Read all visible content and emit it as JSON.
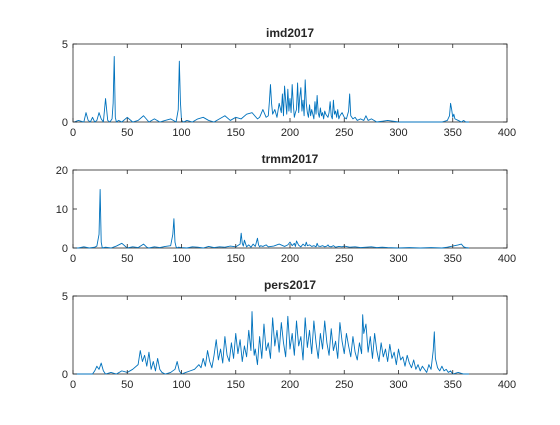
{
  "chart_data": [
    {
      "type": "line",
      "title": "imd2017",
      "xlabel": "",
      "ylabel": "",
      "xlim": [
        0,
        400
      ],
      "ylim": [
        0,
        5
      ],
      "xticks": [
        0,
        50,
        100,
        150,
        200,
        250,
        300,
        350,
        400
      ],
      "yticks": [
        0,
        5
      ],
      "grid": false,
      "line_color": "#0072BD",
      "series": [
        {
          "x": [
            1,
            5,
            10,
            12,
            14,
            16,
            18,
            20,
            22,
            24,
            26,
            28,
            30,
            32,
            34,
            36,
            37,
            38,
            39,
            40,
            42,
            45,
            50,
            55,
            60,
            65,
            70,
            75,
            80,
            85,
            90,
            95,
            97,
            98,
            99,
            100,
            102,
            105,
            110,
            115,
            120,
            125,
            130,
            135,
            140,
            145,
            150,
            155,
            160,
            165,
            170,
            172,
            175,
            178,
            180,
            181,
            182,
            183,
            184,
            186,
            188,
            190,
            192,
            193,
            194,
            195,
            196,
            197,
            198,
            199,
            200,
            201,
            202,
            203,
            204,
            205,
            206,
            207,
            208,
            209,
            210,
            211,
            212,
            213,
            214,
            215,
            216,
            217,
            218,
            219,
            220,
            221,
            222,
            223,
            224,
            225,
            226,
            227,
            228,
            229,
            230,
            231,
            232,
            233,
            234,
            235,
            236,
            237,
            238,
            239,
            240,
            241,
            242,
            243,
            244,
            245,
            246,
            248,
            250,
            252,
            254,
            255,
            256,
            258,
            260,
            262,
            265,
            268,
            270,
            272,
            275,
            280,
            290,
            300,
            320,
            340,
            345,
            347,
            348,
            349,
            350,
            351,
            352,
            355,
            358,
            360,
            362,
            365
          ],
          "y": [
            0,
            0.1,
            0,
            0.6,
            0.1,
            0,
            0.3,
            0,
            0.1,
            0.6,
            0.2,
            0,
            1.5,
            0.1,
            0,
            0.2,
            1.2,
            4.2,
            0.3,
            0,
            0.1,
            0,
            0.3,
            0,
            0.1,
            0.4,
            0,
            0.2,
            0,
            0.1,
            0.2,
            0,
            0.8,
            3.9,
            1.3,
            0.1,
            0,
            0.1,
            0,
            0.2,
            0.3,
            0.1,
            0,
            0.2,
            0.4,
            0.1,
            0.3,
            0.2,
            0.5,
            0.6,
            0.2,
            0.3,
            0.8,
            0.3,
            0.4,
            1.3,
            2.4,
            1.2,
            0.5,
            0.8,
            0.3,
            1.2,
            0.6,
            1.8,
            0.4,
            2.3,
            1.4,
            0.5,
            2.1,
            0.7,
            1.5,
            0.6,
            2.4,
            1.2,
            0.3,
            0.6,
            0.8,
            2.5,
            0.6,
            1.6,
            2.2,
            0.7,
            1.4,
            0.4,
            2.7,
            1.2,
            0.6,
            0.3,
            1.1,
            0.4,
            0.8,
            0.5,
            0.2,
            1.3,
            0.5,
            1.7,
            0.6,
            0.3,
            0.9,
            0.4,
            0.6,
            0.2,
            0.7,
            0.5,
            0.4,
            0.3,
            0.6,
            1.3,
            0.4,
            0.2,
            1.4,
            0.5,
            0.7,
            0.3,
            0.8,
            0.2,
            0.4,
            0.6,
            0.3,
            0.2,
            0.7,
            1.8,
            0.4,
            0.2,
            0.3,
            0.1,
            0.2,
            0.1,
            0.4,
            0.1,
            0.2,
            0,
            0.1,
            0,
            0,
            0,
            0.1,
            0.4,
            1.2,
            0.8,
            0.3,
            0.5,
            0.2,
            0.1,
            0,
            0.1,
            0,
            0
          ]
        }
      ]
    },
    {
      "type": "line",
      "title": "trmm2017",
      "xlabel": "",
      "ylabel": "",
      "xlim": [
        0,
        400
      ],
      "ylim": [
        0,
        20
      ],
      "xticks": [
        0,
        50,
        100,
        150,
        200,
        250,
        300,
        350,
        400
      ],
      "yticks": [
        0,
        10,
        20
      ],
      "grid": false,
      "line_color": "#0072BD",
      "series": [
        {
          "x": [
            1,
            5,
            10,
            15,
            20,
            22,
            24,
            25,
            26,
            27,
            30,
            35,
            40,
            45,
            50,
            55,
            60,
            65,
            68,
            70,
            75,
            80,
            85,
            90,
            92,
            93,
            94,
            95,
            96,
            97,
            100,
            105,
            110,
            115,
            120,
            125,
            130,
            135,
            140,
            145,
            150,
            154,
            155,
            156,
            157,
            158,
            160,
            162,
            164,
            166,
            168,
            170,
            171,
            172,
            173,
            175,
            178,
            180,
            185,
            190,
            195,
            198,
            200,
            202,
            204,
            205,
            206,
            208,
            210,
            212,
            214,
            215,
            216,
            218,
            220,
            222,
            224,
            225,
            226,
            228,
            230,
            232,
            234,
            235,
            236,
            238,
            240,
            242,
            245,
            248,
            250,
            255,
            260,
            265,
            270,
            275,
            280,
            285,
            290,
            300,
            310,
            320,
            330,
            340,
            345,
            350,
            355,
            358,
            360,
            362,
            365
          ],
          "y": [
            0,
            0,
            0.3,
            0,
            0.2,
            0.5,
            3.5,
            15,
            1.5,
            0,
            0.2,
            0,
            0.5,
            1.2,
            0,
            0.3,
            0.1,
            1.0,
            0.2,
            0,
            0.3,
            0.1,
            0.4,
            0.6,
            3.5,
            7.5,
            1.5,
            0.3,
            0,
            0.2,
            0.1,
            0,
            0.3,
            0.2,
            0,
            0.4,
            0.1,
            0.3,
            0.2,
            0.5,
            0.3,
            1.0,
            3.8,
            1.2,
            0.5,
            2.0,
            0.3,
            0.8,
            0.2,
            1.0,
            0.4,
            2.5,
            0.8,
            0.3,
            0.6,
            0.4,
            0.8,
            0.3,
            0.5,
            1.0,
            0.4,
            0.8,
            1.5,
            0.6,
            1.2,
            0.4,
            1.8,
            0.7,
            0.3,
            1.0,
            0.5,
            1.5,
            0.6,
            0.8,
            0.4,
            0.6,
            0.3,
            1.2,
            0.5,
            0.4,
            0.6,
            0.3,
            0.5,
            0.8,
            0.4,
            0.3,
            0.6,
            0.2,
            0.4,
            0.3,
            0.5,
            0.2,
            0.3,
            0.1,
            0.2,
            0.3,
            0.1,
            0.2,
            0.1,
            0,
            0.1,
            0,
            0.1,
            0,
            0.2,
            0.5,
            0.8,
            1.0,
            0.3,
            0.1,
            0
          ]
        }
      ]
    },
    {
      "type": "line",
      "title": "pers2017",
      "xlabel": "",
      "ylabel": "",
      "xlim": [
        0,
        400
      ],
      "ylim": [
        0,
        5
      ],
      "xticks": [
        0,
        50,
        100,
        150,
        200,
        250,
        300,
        350,
        400
      ],
      "yticks": [
        0,
        5
      ],
      "grid": false,
      "line_color": "#0072BD",
      "series": [
        {
          "x": [
            1,
            10,
            18,
            20,
            22,
            24,
            26,
            28,
            30,
            35,
            40,
            45,
            50,
            55,
            60,
            62,
            64,
            66,
            68,
            70,
            72,
            74,
            76,
            78,
            80,
            82,
            85,
            90,
            94,
            96,
            98,
            100,
            104,
            108,
            112,
            116,
            118,
            120,
            122,
            124,
            126,
            128,
            130,
            132,
            134,
            136,
            138,
            140,
            142,
            144,
            146,
            148,
            150,
            152,
            154,
            156,
            158,
            160,
            162,
            164,
            165,
            166,
            167,
            168,
            170,
            172,
            174,
            176,
            178,
            180,
            182,
            184,
            186,
            188,
            190,
            192,
            194,
            196,
            198,
            200,
            202,
            204,
            206,
            208,
            210,
            212,
            214,
            216,
            218,
            220,
            222,
            224,
            226,
            228,
            230,
            232,
            234,
            236,
            238,
            240,
            242,
            244,
            246,
            248,
            250,
            252,
            254,
            256,
            258,
            260,
            262,
            264,
            266,
            267,
            268,
            270,
            272,
            274,
            276,
            278,
            280,
            282,
            284,
            286,
            288,
            290,
            292,
            294,
            296,
            298,
            300,
            302,
            304,
            306,
            308,
            310,
            312,
            314,
            316,
            318,
            320,
            322,
            324,
            326,
            328,
            330,
            332,
            333,
            334,
            336,
            338,
            340,
            342,
            344,
            346,
            348,
            350,
            355,
            360,
            365
          ],
          "y": [
            0,
            0,
            0,
            0.2,
            0.5,
            0.3,
            0.7,
            0.2,
            0,
            0.1,
            0,
            0.2,
            0.1,
            0.3,
            0.6,
            1.5,
            0.8,
            1.2,
            0.5,
            1.4,
            0.3,
            0.8,
            0.2,
            1.0,
            0.3,
            0.1,
            0,
            0.1,
            0.3,
            0.8,
            0.2,
            0,
            0.1,
            0.2,
            0.3,
            0.6,
            0.4,
            1.0,
            0.5,
            1.5,
            0.8,
            0.4,
            1.2,
            2.2,
            0.9,
            1.6,
            0.7,
            2.4,
            1.2,
            0.8,
            2.0,
            1.0,
            2.6,
            1.3,
            2.2,
            0.8,
            1.8,
            1.1,
            2.8,
            1.5,
            4.0,
            2.2,
            1.2,
            1.6,
            0.6,
            2.4,
            1.0,
            3.2,
            1.5,
            2.0,
            1.0,
            3.6,
            1.8,
            2.8,
            1.4,
            3.3,
            2.0,
            1.1,
            3.7,
            1.6,
            2.6,
            1.2,
            3.4,
            1.8,
            2.4,
            0.9,
            3.6,
            1.7,
            2.8,
            1.3,
            3.4,
            2.0,
            1.0,
            2.6,
            1.6,
            3.4,
            2.0,
            1.2,
            2.9,
            1.5,
            2.1,
            1.0,
            3.3,
            2.1,
            1.3,
            2.6,
            1.8,
            1.1,
            2.4,
            1.4,
            0.9,
            2.0,
            1.3,
            3.8,
            2.6,
            3.2,
            1.4,
            2.4,
            1.0,
            2.6,
            1.5,
            0.8,
            2.0,
            1.1,
            1.6,
            0.8,
            1.9,
            1.0,
            1.4,
            0.6,
            1.6,
            0.9,
            1.1,
            0.5,
            1.2,
            0.7,
            0.4,
            0.9,
            0.3,
            0.6,
            0.2,
            0.5,
            0.3,
            0.1,
            0.6,
            0.3,
            1.5,
            2.7,
            1.0,
            0.4,
            0.2,
            0.5,
            0.2,
            0.3,
            0.1,
            0.2,
            0,
            0.1,
            0,
            0
          ]
        }
      ]
    }
  ]
}
